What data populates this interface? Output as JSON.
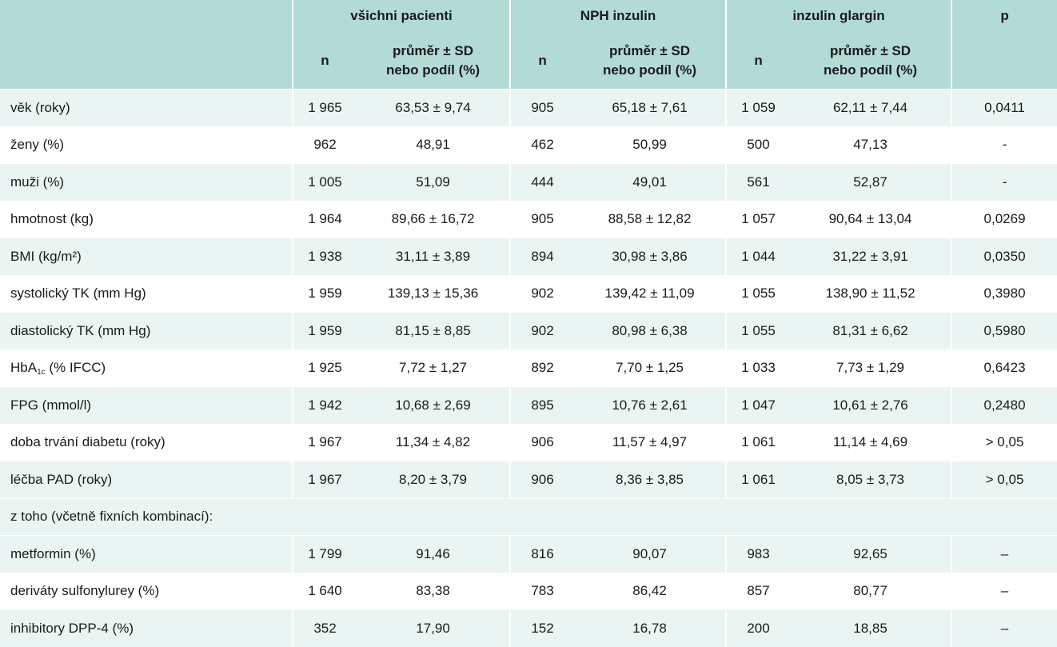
{
  "header": {
    "groups": [
      "všichni pacienti",
      "NPH inzulin",
      "inzulin glargin"
    ],
    "p": "p",
    "n": "n",
    "stat_line1": "průměr ± SD",
    "stat_line2": "nebo podíl (%)"
  },
  "rows": [
    {
      "label": "věk (roky)",
      "cells": [
        "1 965",
        "63,53 ± 9,74",
        "905",
        "65,18 ± 7,61",
        "1 059",
        "62,11 ± 7,44",
        "0,0411"
      ]
    },
    {
      "label": "ženy (%)",
      "cells": [
        "962",
        "48,91",
        "462",
        "50,99",
        "500",
        "47,13",
        "-"
      ]
    },
    {
      "label": "muži (%)",
      "cells": [
        "1 005",
        "51,09",
        "444",
        "49,01",
        "561",
        "52,87",
        "-"
      ]
    },
    {
      "label": "hmotnost (kg)",
      "cells": [
        "1 964",
        "89,66 ± 16,72",
        "905",
        "88,58 ± 12,82",
        "1 057",
        "90,64 ± 13,04",
        "0,0269"
      ]
    },
    {
      "label": "BMI (kg/m²)",
      "cells": [
        "1 938",
        "31,11 ± 3,89",
        "894",
        "30,98 ± 3,86",
        "1 044",
        "31,22 ± 3,91",
        "0,0350"
      ]
    },
    {
      "label": "systolický TK (mm Hg)",
      "cells": [
        "1 959",
        "139,13 ± 15,36",
        "902",
        "139,42 ± 11,09",
        "1 055",
        "138,90 ± 11,52",
        "0,3980"
      ]
    },
    {
      "label": "diastolický TK (mm Hg)",
      "cells": [
        "1 959",
        "81,15 ± 8,85",
        "902",
        "80,98 ± 6,38",
        "1 055",
        "81,31 ± 6,62",
        "0,5980"
      ]
    },
    {
      "label_main": "HbA",
      "label_sub": "1c",
      "label_rest": " (% IFCC)",
      "cells": [
        "1 925",
        "7,72 ± 1,27",
        "892",
        "7,70 ± 1,25",
        "1 033",
        "7,73 ± 1,29",
        "0,6423"
      ]
    },
    {
      "label": "FPG (mmol/l)",
      "cells": [
        "1 942",
        "10,68 ± 2,69",
        "895",
        "10,76 ± 2,61",
        "1 047",
        "10,61 ± 2,76",
        "0,2480"
      ]
    },
    {
      "label": "doba trvání diabetu (roky)",
      "cells": [
        "1 967",
        "11,34 ± 4,82",
        "906",
        "11,57 ± 4,97",
        "1 061",
        "11,14 ± 4,69",
        "> 0,05"
      ]
    },
    {
      "label": "léčba PAD (roky)",
      "cells": [
        "1 967",
        "8,20 ± 3,79",
        "906",
        "8,36 ± 3,85",
        "1 061",
        "8,05 ± 3,73",
        "> 0,05"
      ]
    },
    {
      "section": "z toho (včetně fixních kombinací):"
    },
    {
      "label": "metformin (%)",
      "cells": [
        "1 799",
        "91,46",
        "816",
        "90,07",
        "983",
        "92,65",
        "–"
      ]
    },
    {
      "label": "deriváty sulfonylurey (%)",
      "cells": [
        "1 640",
        "83,38",
        "783",
        "86,42",
        "857",
        "80,77",
        "–"
      ]
    },
    {
      "label": "inhibitory DPP-4 (%)",
      "cells": [
        "352",
        "17,90",
        "152",
        "16,78",
        "200",
        "18,85",
        "–"
      ]
    }
  ]
}
